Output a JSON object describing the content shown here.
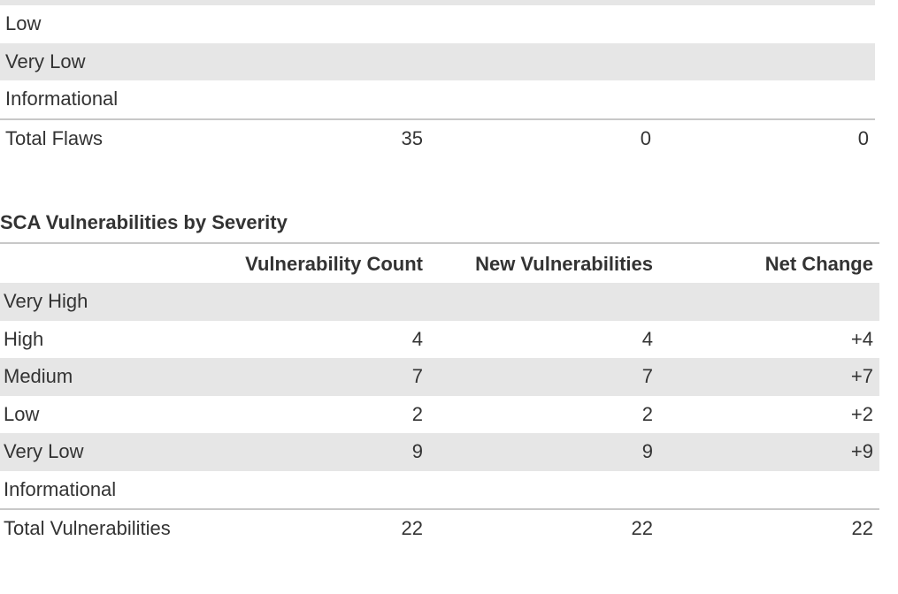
{
  "flaws_table": {
    "rows": [
      {
        "label": "Low",
        "shaded": false
      },
      {
        "label": "Very Low",
        "shaded": true
      },
      {
        "label": "Informational",
        "shaded": false
      }
    ],
    "total": {
      "label": "Total Flaws",
      "col1": "35",
      "col2": "0",
      "col3": "0"
    }
  },
  "sca": {
    "title": "SCA Vulnerabilities by Severity",
    "headers": [
      "",
      "Vulnerability Count",
      "New Vulnerabilities",
      "Net Change"
    ],
    "rows": [
      {
        "label": "Very High",
        "count": "",
        "new": "",
        "net": ""
      },
      {
        "label": "High",
        "count": "4",
        "new": "4",
        "net": "+4"
      },
      {
        "label": "Medium",
        "count": "7",
        "new": "7",
        "net": "+7"
      },
      {
        "label": "Low",
        "count": "2",
        "new": "2",
        "net": "+2"
      },
      {
        "label": "Very Low",
        "count": "9",
        "new": "9",
        "net": "+9"
      },
      {
        "label": "Informational",
        "count": "",
        "new": "",
        "net": ""
      }
    ],
    "total": {
      "label": "Total Vulnerabilities",
      "count": "22",
      "new": "22",
      "net": "22"
    }
  }
}
